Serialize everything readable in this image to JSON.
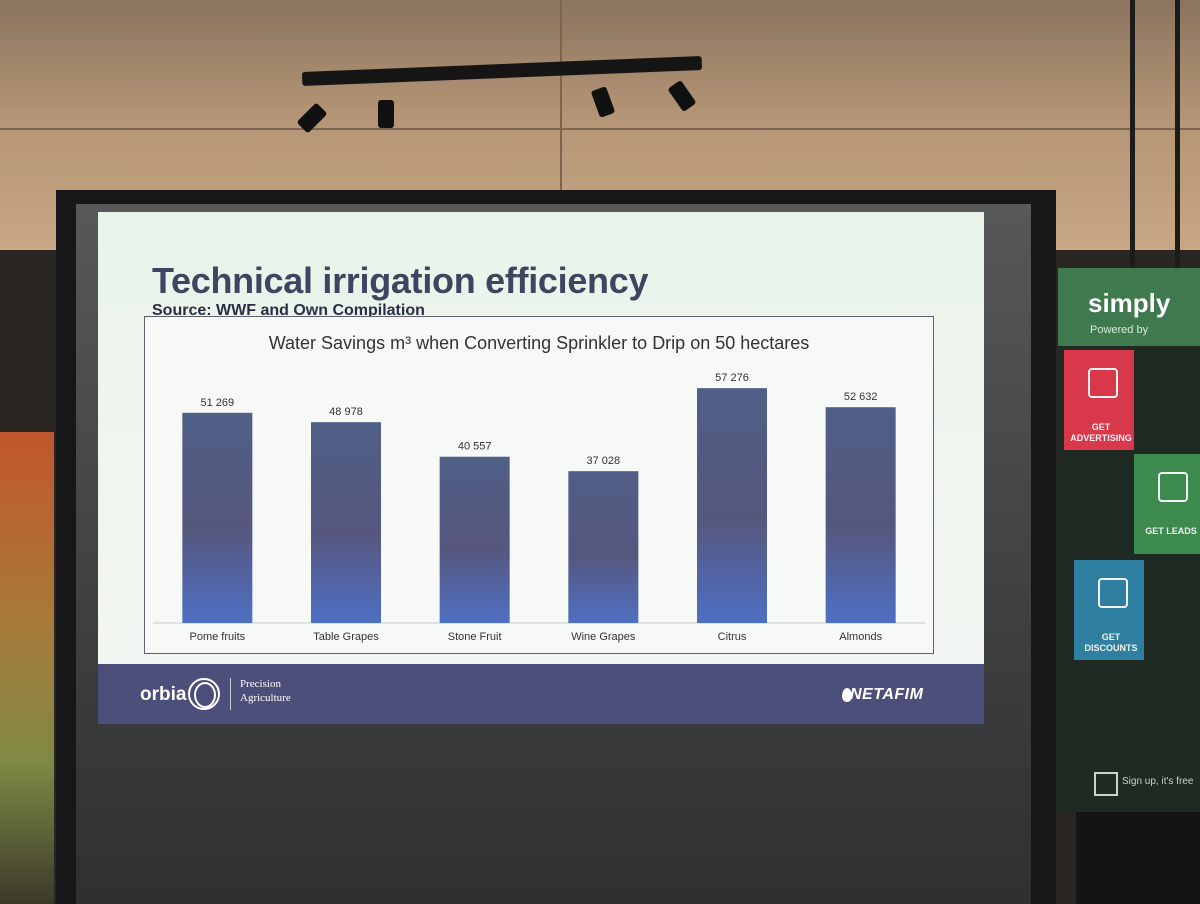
{
  "slide": {
    "title": "Technical irrigation efficiency",
    "source": "Source: WWF and Own Compilation"
  },
  "chart_data": {
    "type": "bar",
    "title": "Water Savings m³ when Converting Sprinkler to Drip on 50 hectares",
    "categories": [
      "Pome fruits",
      "Table Grapes",
      "Stone Fruit",
      "Wine Grapes",
      "Citrus",
      "Almonds"
    ],
    "values": [
      51269,
      48978,
      40557,
      37028,
      57276,
      52632
    ],
    "value_labels": [
      "51 269",
      "48 978",
      "40 557",
      "37 028",
      "57 276",
      "52 632"
    ],
    "xlabel": "",
    "ylabel": "",
    "ylim": [
      0,
      60000
    ],
    "grid": false,
    "legend": "none",
    "colors": {
      "bar_top": "#4f5f86",
      "bar_bottom": "#4e6fc2",
      "text": "#333333"
    }
  },
  "footer": {
    "brand": "orbia",
    "division_line1": "Precision",
    "division_line2": "Agriculture",
    "partner": "NETAFIM"
  },
  "banner": {
    "brand": "simply",
    "powered": "Powered by",
    "tiles": [
      {
        "label": "GET ADVERTISING",
        "color": "#d9374a",
        "icon": "profile-icon"
      },
      {
        "label": "GET LEADS",
        "color": "#3c8a4e",
        "icon": "image-icon"
      },
      {
        "label": "GET DISCOUNTS",
        "color": "#2f7fa0",
        "icon": "puzzle-icon"
      }
    ],
    "signup": "Sign up, it's free"
  }
}
